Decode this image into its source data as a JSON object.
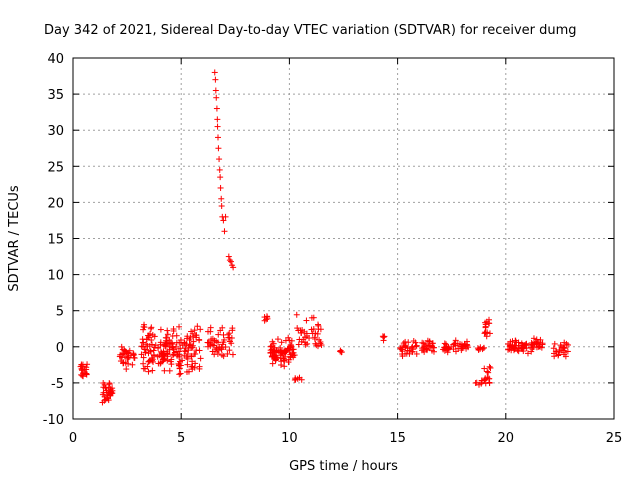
{
  "chart_data": {
    "type": "scatter",
    "title": "Day 342 of 2021, Sidereal Day-to-day VTEC variation (SDTVAR) for receiver dumg",
    "xlabel": "GPS time / hours",
    "ylabel": "SDTVAR / TECUs",
    "xlim": [
      0,
      25
    ],
    "ylim": [
      -10,
      40
    ],
    "xticks": [
      0,
      5,
      10,
      15,
      20,
      25
    ],
    "yticks": [
      -10,
      -5,
      0,
      5,
      10,
      15,
      20,
      25,
      30,
      35,
      40
    ],
    "grid": true,
    "marker": "plus",
    "color": "#ff0000",
    "clusters": [
      {
        "x": [
          0.35,
          0.65
        ],
        "y": [
          -4.5,
          -2.0
        ],
        "n": 20
      },
      {
        "x": [
          1.35,
          1.85
        ],
        "y": [
          -8.0,
          -4.5
        ],
        "n": 34
      },
      {
        "x": [
          2.15,
          2.9
        ],
        "y": [
          -3.5,
          0.5
        ],
        "n": 32
      },
      {
        "x": [
          3.15,
          5.9
        ],
        "y": [
          -4.0,
          3.5
        ],
        "n": 190
      },
      {
        "x": [
          6.2,
          7.4
        ],
        "y": [
          -2.0,
          3.0
        ],
        "n": 50
      },
      {
        "x": [
          8.8,
          9.0
        ],
        "y": [
          3.5,
          4.5
        ],
        "n": 6
      },
      {
        "x": [
          9.1,
          10.3
        ],
        "y": [
          -3.0,
          1.5
        ],
        "n": 80
      },
      {
        "x": [
          10.25,
          10.6
        ],
        "y": [
          -5.0,
          -4.0
        ],
        "n": 6
      },
      {
        "x": [
          10.3,
          11.5
        ],
        "y": [
          -1.0,
          4.5
        ],
        "n": 40
      },
      {
        "x": [
          12.3,
          12.5
        ],
        "y": [
          -0.9,
          -0.5
        ],
        "n": 4
      },
      {
        "x": [
          14.3,
          14.4
        ],
        "y": [
          0.5,
          2.0
        ],
        "n": 4
      },
      {
        "x": [
          15.1,
          15.9
        ],
        "y": [
          -1.8,
          1.2
        ],
        "n": 30
      },
      {
        "x": [
          16.1,
          16.7
        ],
        "y": [
          -1.0,
          1.2
        ],
        "n": 25
      },
      {
        "x": [
          17.1,
          18.3
        ],
        "y": [
          -1.0,
          1.0
        ],
        "n": 40
      },
      {
        "x": [
          18.6,
          18.9
        ],
        "y": [
          -5.5,
          -4.5
        ],
        "n": 6
      },
      {
        "x": [
          18.7,
          19.0
        ],
        "y": [
          -1.0,
          0.5
        ],
        "n": 8
      },
      {
        "x": [
          19.0,
          19.3
        ],
        "y": [
          -6.0,
          -2.5
        ],
        "n": 14
      },
      {
        "x": [
          19.0,
          19.3
        ],
        "y": [
          0.5,
          4.3
        ],
        "n": 14
      },
      {
        "x": [
          20.1,
          21.7
        ],
        "y": [
          -1.0,
          1.2
        ],
        "n": 70
      },
      {
        "x": [
          22.2,
          22.9
        ],
        "y": [
          -1.5,
          0.8
        ],
        "n": 25
      }
    ],
    "spike": [
      [
        6.55,
        38.0
      ],
      [
        6.58,
        37.0
      ],
      [
        6.6,
        35.5
      ],
      [
        6.62,
        34.5
      ],
      [
        6.65,
        33.0
      ],
      [
        6.67,
        31.5
      ],
      [
        6.68,
        30.5
      ],
      [
        6.7,
        29.0
      ],
      [
        6.72,
        27.5
      ],
      [
        6.75,
        26.0
      ],
      [
        6.78,
        24.5
      ],
      [
        6.8,
        23.5
      ],
      [
        6.82,
        22.0
      ],
      [
        6.85,
        20.5
      ],
      [
        6.87,
        19.5
      ],
      [
        6.9,
        18.0
      ],
      [
        6.95,
        17.5
      ],
      [
        7.0,
        16.0
      ],
      [
        7.05,
        18.0
      ],
      [
        7.2,
        12.5
      ],
      [
        7.25,
        12.0
      ],
      [
        7.3,
        11.8
      ],
      [
        7.35,
        11.3
      ],
      [
        7.4,
        11.0
      ]
    ]
  }
}
